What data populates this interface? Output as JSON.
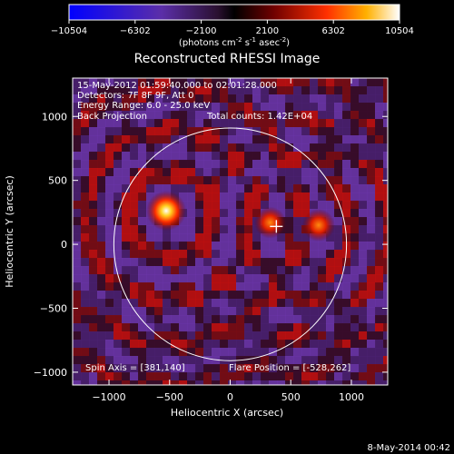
{
  "colorbar": {
    "ticks": [
      "-10504",
      "-6302",
      "-2100",
      "2100",
      "6302",
      "10504"
    ],
    "units_main": "(photons cm",
    "units_exp1": "-2",
    "units_mid": " s",
    "units_exp2": "-1",
    "units_end": " asec",
    "units_exp3": "-2",
    "units_close": ")",
    "colors": [
      "#0000ff",
      "#5b2ea8",
      "#2a1030",
      "#000000",
      "#700000",
      "#ff3000",
      "#ffb000",
      "#ffffff"
    ]
  },
  "image_info": {
    "time_range": "15-May-2012 01:59:40.000 to 02:01:28.000",
    "detectors": "Detectors: 7F 8F 9F, Att 0",
    "energy_range": "Energy Range: 6.0 - 25.0 keV",
    "method": "Back Projection",
    "total_counts": "Total counts: 1.42E+04",
    "spin_axis": "Spin Axis = [381,140]",
    "flare_position": "Flare Position = [-528,262]"
  },
  "footer": {
    "timestamp": "8-May-2014 00:42"
  },
  "chart_data": {
    "type": "heatmap",
    "title": "Reconstructed RHESSI Image",
    "xlabel": "Heliocentric X (arcsec)",
    "ylabel": "Heliocentric Y (arcsec)",
    "xlim": [
      -1300,
      1300
    ],
    "ylim": [
      -1100,
      1300
    ],
    "x_ticks": [
      -1000,
      -500,
      0,
      500,
      1000
    ],
    "y_ticks": [
      -1000,
      -500,
      0,
      500,
      1000
    ],
    "x_tick_labels": [
      "−1000",
      "−500",
      "0",
      "500",
      "1000"
    ],
    "y_tick_labels": [
      "−1000",
      "−500",
      "0",
      "500",
      "1000"
    ],
    "clim": [
      -10504,
      10504
    ],
    "solar_limb_radius": 960,
    "sources": [
      {
        "x": -528,
        "y": 262,
        "intensity": 10504
      },
      {
        "x": 330,
        "y": 170,
        "intensity": 5800
      },
      {
        "x": 730,
        "y": 150,
        "intensity": 6300
      }
    ],
    "spin_axis_marker": {
      "x": 381,
      "y": 140
    }
  }
}
